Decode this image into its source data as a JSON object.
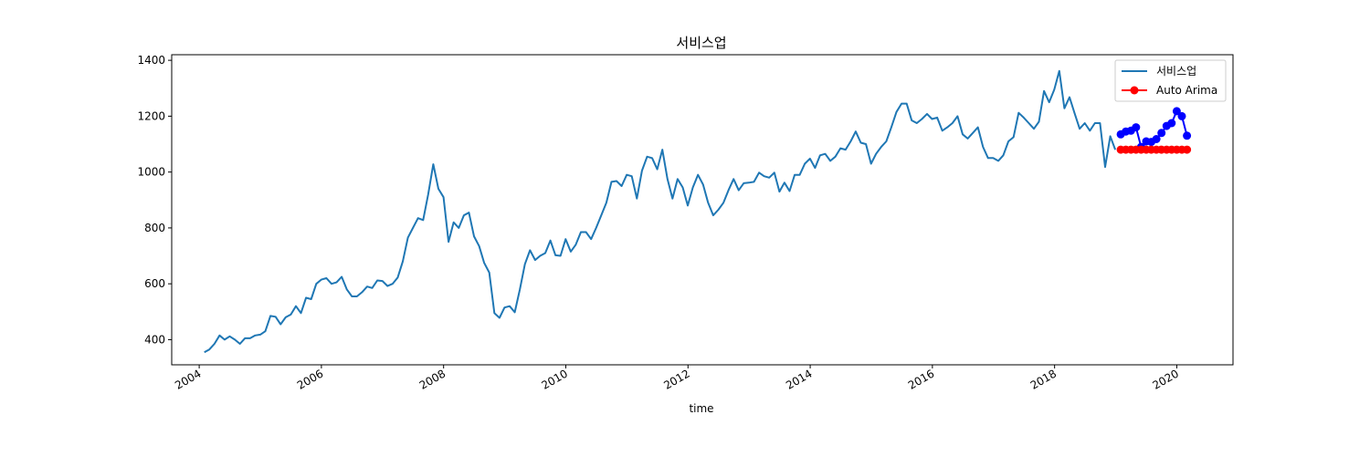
{
  "chart_data": {
    "type": "line",
    "title": "서비스업",
    "xlabel": "time",
    "ylabel": "",
    "xlim": [
      2003.55,
      2020.92
    ],
    "ylim": [
      310,
      1420
    ],
    "x_ticks": [
      2004,
      2006,
      2008,
      2010,
      2012,
      2014,
      2016,
      2018,
      2020
    ],
    "x_tick_labels": [
      "2004",
      "2006",
      "2008",
      "2010",
      "2012",
      "2014",
      "2016",
      "2018",
      "2020"
    ],
    "y_ticks": [
      400,
      600,
      800,
      1000,
      1200,
      1400
    ],
    "y_tick_labels": [
      "400",
      "600",
      "800",
      "1000",
      "1200",
      "1400"
    ],
    "grid": false,
    "legend_position": "top-right",
    "legend": [
      {
        "label": "서비스업",
        "color": "#1f77b4",
        "marker": "none"
      },
      {
        "label": "Auto Arima",
        "color": "#ff0000",
        "marker": "circle"
      }
    ],
    "series": [
      {
        "name": "서비스업",
        "color": "#1f77b4",
        "marker": "none",
        "x_start": 2004.083,
        "x_step": 0.0833,
        "values": [
          355,
          365,
          385,
          415,
          400,
          412,
          400,
          385,
          405,
          405,
          415,
          418,
          430,
          485,
          482,
          455,
          480,
          490,
          520,
          495,
          550,
          545,
          600,
          615,
          620,
          600,
          605,
          625,
          580,
          555,
          555,
          570,
          590,
          585,
          612,
          610,
          592,
          600,
          622,
          680,
          765,
          800,
          835,
          828,
          920,
          1028,
          940,
          910,
          750,
          820,
          800,
          845,
          855,
          770,
          735,
          675,
          640,
          495,
          478,
          515,
          520,
          498,
          580,
          670,
          720,
          685,
          700,
          710,
          755,
          702,
          700,
          760,
          715,
          740,
          785,
          785,
          760,
          800,
          845,
          890,
          965,
          968,
          950,
          990,
          985,
          905,
          1005,
          1055,
          1050,
          1010,
          1080,
          975,
          905,
          975,
          945,
          880,
          945,
          990,
          955,
          890,
          845,
          865,
          890,
          935,
          975,
          935,
          960,
          962,
          965,
          998,
          985,
          980,
          998,
          930,
          962,
          932,
          990,
          990,
          1030,
          1048,
          1015,
          1060,
          1065,
          1040,
          1055,
          1085,
          1080,
          1110,
          1145,
          1105,
          1100,
          1030,
          1065,
          1090,
          1110,
          1160,
          1215,
          1245,
          1245,
          1185,
          1175,
          1190,
          1208,
          1190,
          1195,
          1148,
          1160,
          1175,
          1200,
          1135,
          1120,
          1140,
          1160,
          1090,
          1050,
          1050,
          1040,
          1060,
          1110,
          1125,
          1212,
          1195,
          1175,
          1155,
          1180,
          1290,
          1250,
          1295,
          1362,
          1228,
          1268,
          1210,
          1155,
          1175,
          1148,
          1175,
          1175,
          1018,
          1128,
          1080
        ]
      },
      {
        "name": "",
        "color": "#0000ff",
        "marker": "circle",
        "x_start": 2019.083,
        "x_step": 0.0833,
        "values": [
          1135,
          1145,
          1148,
          1160,
          1090,
          1110,
          1108,
          1118,
          1140,
          1165,
          1175,
          1218,
          1200,
          1130
        ]
      },
      {
        "name": "Auto Arima",
        "color": "#ff0000",
        "marker": "circle",
        "x_start": 2019.083,
        "x_step": 0.0833,
        "values": [
          1080,
          1080,
          1080,
          1080,
          1080,
          1080,
          1080,
          1080,
          1080,
          1080,
          1080,
          1080,
          1080,
          1080
        ]
      }
    ]
  }
}
